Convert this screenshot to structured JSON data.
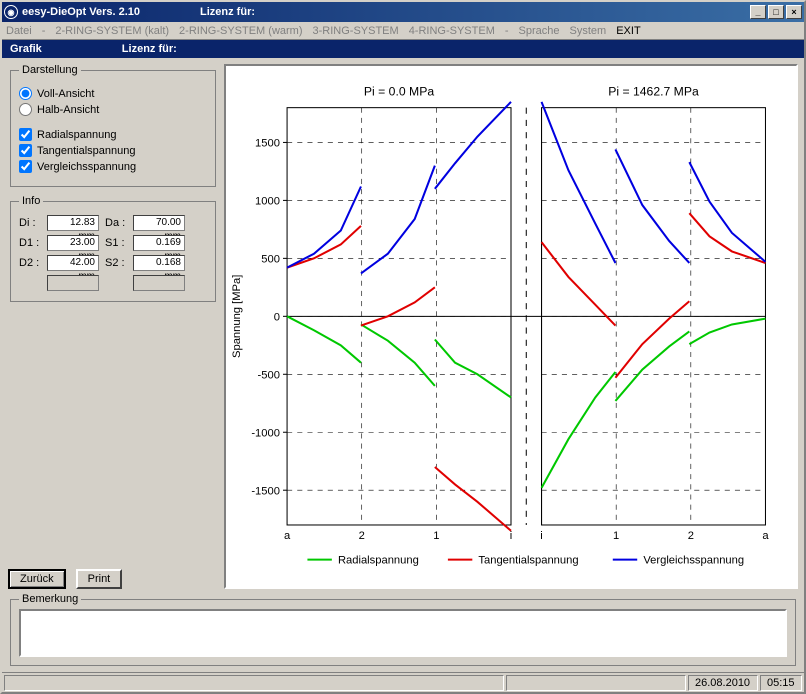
{
  "window": {
    "title_app": "eesy-DieOpt Vers. 2.10",
    "title_license": "Lizenz für:"
  },
  "menu": {
    "datei": "Datei",
    "ring2k": "2-RING-SYSTEM (kalt)",
    "ring2w": "2-RING-SYSTEM (warm)",
    "ring3": "3-RING-SYSTEM",
    "ring4": "4-RING-SYSTEM",
    "sprache": "Sprache",
    "system": "System",
    "exit": "EXIT"
  },
  "subheader": {
    "grafik": "Grafik",
    "license": "Lizenz für:"
  },
  "darstellung": {
    "legend": "Darstellung",
    "voll": "Voll-Ansicht",
    "halb": "Halb-Ansicht",
    "radial": "Radialspannung",
    "tangential": "Tangentialspannung",
    "vergleich": "Vergleichsspannung"
  },
  "info": {
    "legend": "Info",
    "di_label": "Di :",
    "di_val": "12.83 mm",
    "da_label": "Da :",
    "da_val": "70.00 mm",
    "d1_label": "D1 :",
    "d1_val": "23.00 mm",
    "s1_label": "S1 :",
    "s1_val": "0.169 mm",
    "d2_label": "D2 :",
    "d2_val": "42.00 mm",
    "s2_label": "S2 :",
    "s2_val": "0.168 mm"
  },
  "buttons": {
    "zurueck": "Zurück",
    "print": "Print"
  },
  "bemerkung": {
    "label": "Bemerkung"
  },
  "status": {
    "date": "26.08.2010",
    "time": "05:15"
  },
  "chart": {
    "title_left": "Pi = 0.0 MPa",
    "title_right": "Pi = 1462.7 MPa",
    "yaxis_label": "Spannung [MPa]",
    "ylim": [
      -1800,
      1800
    ],
    "yticks": [
      -1500,
      -1000,
      -500,
      0,
      500,
      1000,
      1500
    ],
    "xticks_left": [
      "a",
      "2",
      "1",
      "i"
    ],
    "xticks_right": [
      "i",
      "1",
      "2",
      "a"
    ],
    "legend_items": [
      {
        "label": "Radialspannung",
        "color": "#00c800"
      },
      {
        "label": "Tangentialspannung",
        "color": "#e00000"
      },
      {
        "label": "Vergleichsspannung",
        "color": "#0000e0"
      }
    ],
    "colors": {
      "radial": "#00c800",
      "tangential": "#e00000",
      "vergleich": "#0000e0",
      "axis": "#000000",
      "grid_dash": "#000000"
    },
    "left": {
      "radial": [
        [
          [
            0,
            0
          ],
          [
            12,
            -120
          ],
          [
            24,
            -250
          ],
          [
            33,
            -400
          ]
        ],
        [
          [
            33,
            -70
          ],
          [
            45,
            -210
          ],
          [
            57,
            -400
          ],
          [
            66,
            -600
          ]
        ],
        [
          [
            66,
            -200
          ],
          [
            75,
            -400
          ],
          [
            85,
            -500
          ],
          [
            100,
            -700
          ]
        ]
      ],
      "tangential": [
        [
          [
            0,
            420
          ],
          [
            12,
            500
          ],
          [
            24,
            620
          ],
          [
            33,
            780
          ]
        ],
        [
          [
            33,
            -80
          ],
          [
            45,
            0
          ],
          [
            57,
            120
          ],
          [
            66,
            250
          ]
        ],
        [
          [
            66,
            -1300
          ],
          [
            75,
            -1450
          ],
          [
            85,
            -1600
          ],
          [
            100,
            -1850
          ]
        ]
      ],
      "vergleich": [
        [
          [
            0,
            420
          ],
          [
            12,
            540
          ],
          [
            24,
            740
          ],
          [
            33,
            1120
          ]
        ],
        [
          [
            33,
            370
          ],
          [
            45,
            540
          ],
          [
            57,
            840
          ],
          [
            66,
            1300
          ]
        ],
        [
          [
            66,
            1100
          ],
          [
            75,
            1320
          ],
          [
            85,
            1550
          ],
          [
            100,
            1850
          ]
        ]
      ]
    },
    "right": {
      "radial": [
        [
          [
            0,
            -1480
          ],
          [
            12,
            -1060
          ],
          [
            24,
            -700
          ],
          [
            33,
            -480
          ]
        ],
        [
          [
            33,
            -730
          ],
          [
            45,
            -460
          ],
          [
            57,
            -260
          ],
          [
            66,
            -130
          ]
        ],
        [
          [
            66,
            -240
          ],
          [
            75,
            -140
          ],
          [
            85,
            -70
          ],
          [
            100,
            -20
          ]
        ]
      ],
      "tangential": [
        [
          [
            0,
            640
          ],
          [
            12,
            340
          ],
          [
            24,
            100
          ],
          [
            33,
            -80
          ]
        ],
        [
          [
            33,
            -530
          ],
          [
            45,
            -240
          ],
          [
            57,
            -20
          ],
          [
            66,
            130
          ]
        ],
        [
          [
            66,
            890
          ],
          [
            75,
            690
          ],
          [
            85,
            560
          ],
          [
            100,
            460
          ]
        ]
      ],
      "vergleich": [
        [
          [
            0,
            1850
          ],
          [
            12,
            1260
          ],
          [
            24,
            800
          ],
          [
            33,
            460
          ]
        ],
        [
          [
            33,
            1440
          ],
          [
            45,
            960
          ],
          [
            57,
            650
          ],
          [
            66,
            460
          ]
        ],
        [
          [
            66,
            1330
          ],
          [
            75,
            990
          ],
          [
            85,
            720
          ],
          [
            100,
            470
          ]
        ]
      ]
    }
  }
}
